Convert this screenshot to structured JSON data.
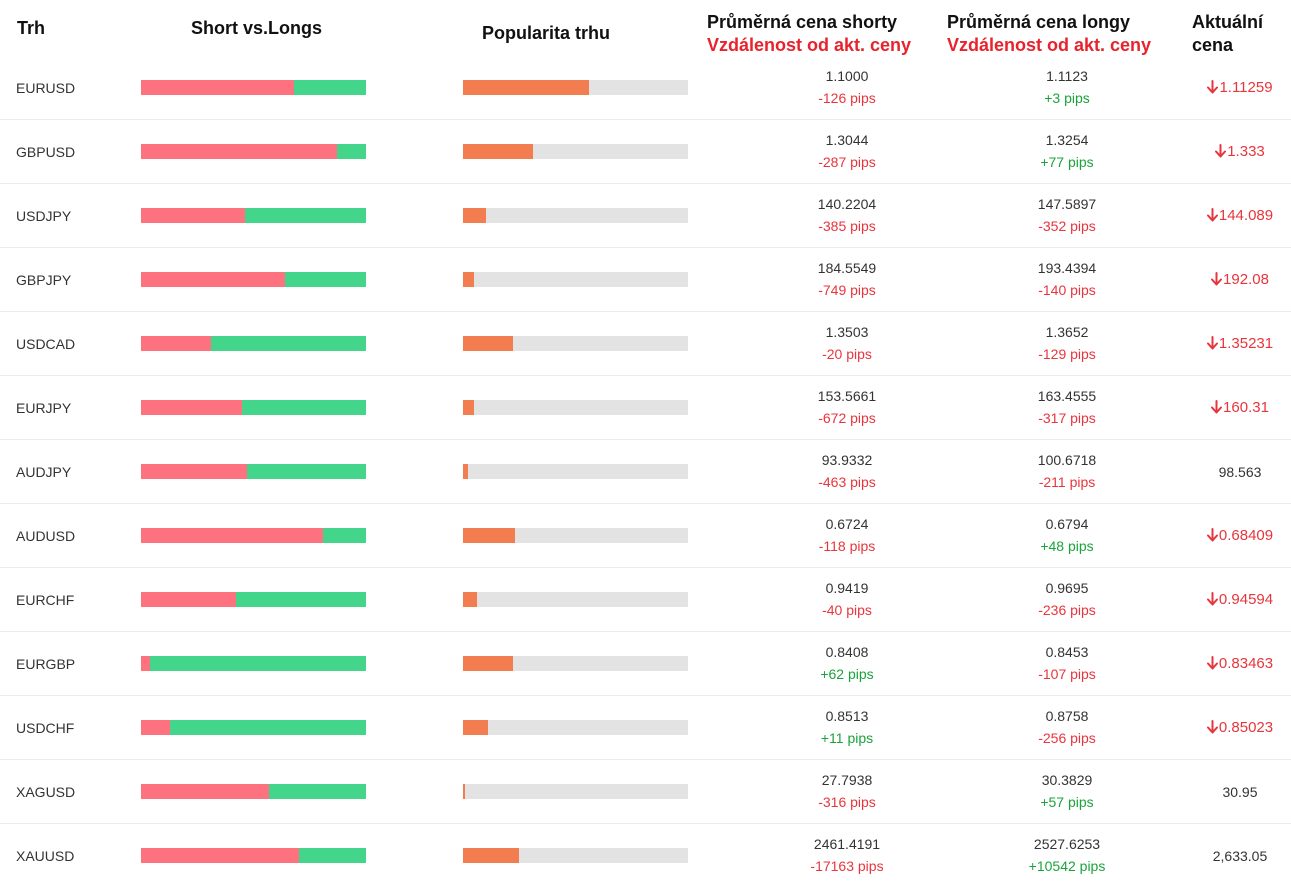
{
  "headers": {
    "market": "Trh",
    "short_vs_longs": "Short vs.Longs",
    "popularity": "Popularita trhu",
    "avg_short": "Průměrná cena shorty",
    "avg_short_sub": "Vzdálenost od akt. ceny",
    "avg_long": "Průměrná cena longy",
    "avg_long_sub": "Vzdálenost od akt. ceny",
    "current": "Aktuální",
    "current_sub": "cena"
  },
  "colors": {
    "short": "#fe717e",
    "long": "#43d68b",
    "popularity": "#f27d50",
    "track": "#e3e3e3",
    "negative": "#e8353c",
    "positive": "#1aa33b"
  },
  "rows": [
    {
      "symbol": "EURUSD",
      "short_pct": 68,
      "popularity_pct": 56,
      "short_price": "1.1000",
      "short_dist": "-126 pips",
      "short_neg": true,
      "long_price": "1.1123",
      "long_dist": "+3 pips",
      "long_neg": false,
      "current": "1.11259",
      "trend": "down"
    },
    {
      "symbol": "GBPUSD",
      "short_pct": 87,
      "popularity_pct": 31,
      "short_price": "1.3044",
      "short_dist": "-287 pips",
      "short_neg": true,
      "long_price": "1.3254",
      "long_dist": "+77 pips",
      "long_neg": false,
      "current": "1.333",
      "trend": "down"
    },
    {
      "symbol": "USDJPY",
      "short_pct": 46,
      "popularity_pct": 10,
      "short_price": "140.2204",
      "short_dist": "-385 pips",
      "short_neg": true,
      "long_price": "147.5897",
      "long_dist": "-352 pips",
      "long_neg": true,
      "current": "144.089",
      "trend": "down"
    },
    {
      "symbol": "GBPJPY",
      "short_pct": 64,
      "popularity_pct": 5,
      "short_price": "184.5549",
      "short_dist": "-749 pips",
      "short_neg": true,
      "long_price": "193.4394",
      "long_dist": "-140 pips",
      "long_neg": true,
      "current": "192.08",
      "trend": "down"
    },
    {
      "symbol": "USDCAD",
      "short_pct": 31,
      "popularity_pct": 22,
      "short_price": "1.3503",
      "short_dist": "-20 pips",
      "short_neg": true,
      "long_price": "1.3652",
      "long_dist": "-129 pips",
      "long_neg": true,
      "current": "1.35231",
      "trend": "down"
    },
    {
      "symbol": "EURJPY",
      "short_pct": 45,
      "popularity_pct": 5,
      "short_price": "153.5661",
      "short_dist": "-672 pips",
      "short_neg": true,
      "long_price": "163.4555",
      "long_dist": "-317 pips",
      "long_neg": true,
      "current": "160.31",
      "trend": "down"
    },
    {
      "symbol": "AUDJPY",
      "short_pct": 47,
      "popularity_pct": 2,
      "short_price": "93.9332",
      "short_dist": "-463 pips",
      "short_neg": true,
      "long_price": "100.6718",
      "long_dist": "-211 pips",
      "long_neg": true,
      "current": "98.563",
      "trend": "flat"
    },
    {
      "symbol": "AUDUSD",
      "short_pct": 81,
      "popularity_pct": 23,
      "short_price": "0.6724",
      "short_dist": "-118 pips",
      "short_neg": true,
      "long_price": "0.6794",
      "long_dist": "+48 pips",
      "long_neg": false,
      "current": "0.68409",
      "trend": "down"
    },
    {
      "symbol": "EURCHF",
      "short_pct": 42,
      "popularity_pct": 6,
      "short_price": "0.9419",
      "short_dist": "-40 pips",
      "short_neg": true,
      "long_price": "0.9695",
      "long_dist": "-236 pips",
      "long_neg": true,
      "current": "0.94594",
      "trend": "down"
    },
    {
      "symbol": "EURGBP",
      "short_pct": 4,
      "popularity_pct": 22,
      "short_price": "0.8408",
      "short_dist": "+62 pips",
      "short_neg": false,
      "long_price": "0.8453",
      "long_dist": "-107 pips",
      "long_neg": true,
      "current": "0.83463",
      "trend": "down"
    },
    {
      "symbol": "USDCHF",
      "short_pct": 13,
      "popularity_pct": 11,
      "short_price": "0.8513",
      "short_dist": "+11 pips",
      "short_neg": false,
      "long_price": "0.8758",
      "long_dist": "-256 pips",
      "long_neg": true,
      "current": "0.85023",
      "trend": "down"
    },
    {
      "symbol": "XAGUSD",
      "short_pct": 57,
      "popularity_pct": 1,
      "short_price": "27.7938",
      "short_dist": "-316 pips",
      "short_neg": true,
      "long_price": "30.3829",
      "long_dist": "+57 pips",
      "long_neg": false,
      "current": "30.95",
      "trend": "flat"
    },
    {
      "symbol": "XAUUSD",
      "short_pct": 70,
      "popularity_pct": 25,
      "short_price": "2461.4191",
      "short_dist": "-17163 pips",
      "short_neg": true,
      "long_price": "2527.6253",
      "long_dist": "+10542 pips",
      "long_neg": false,
      "current": "2,633.05",
      "trend": "flat"
    }
  ]
}
